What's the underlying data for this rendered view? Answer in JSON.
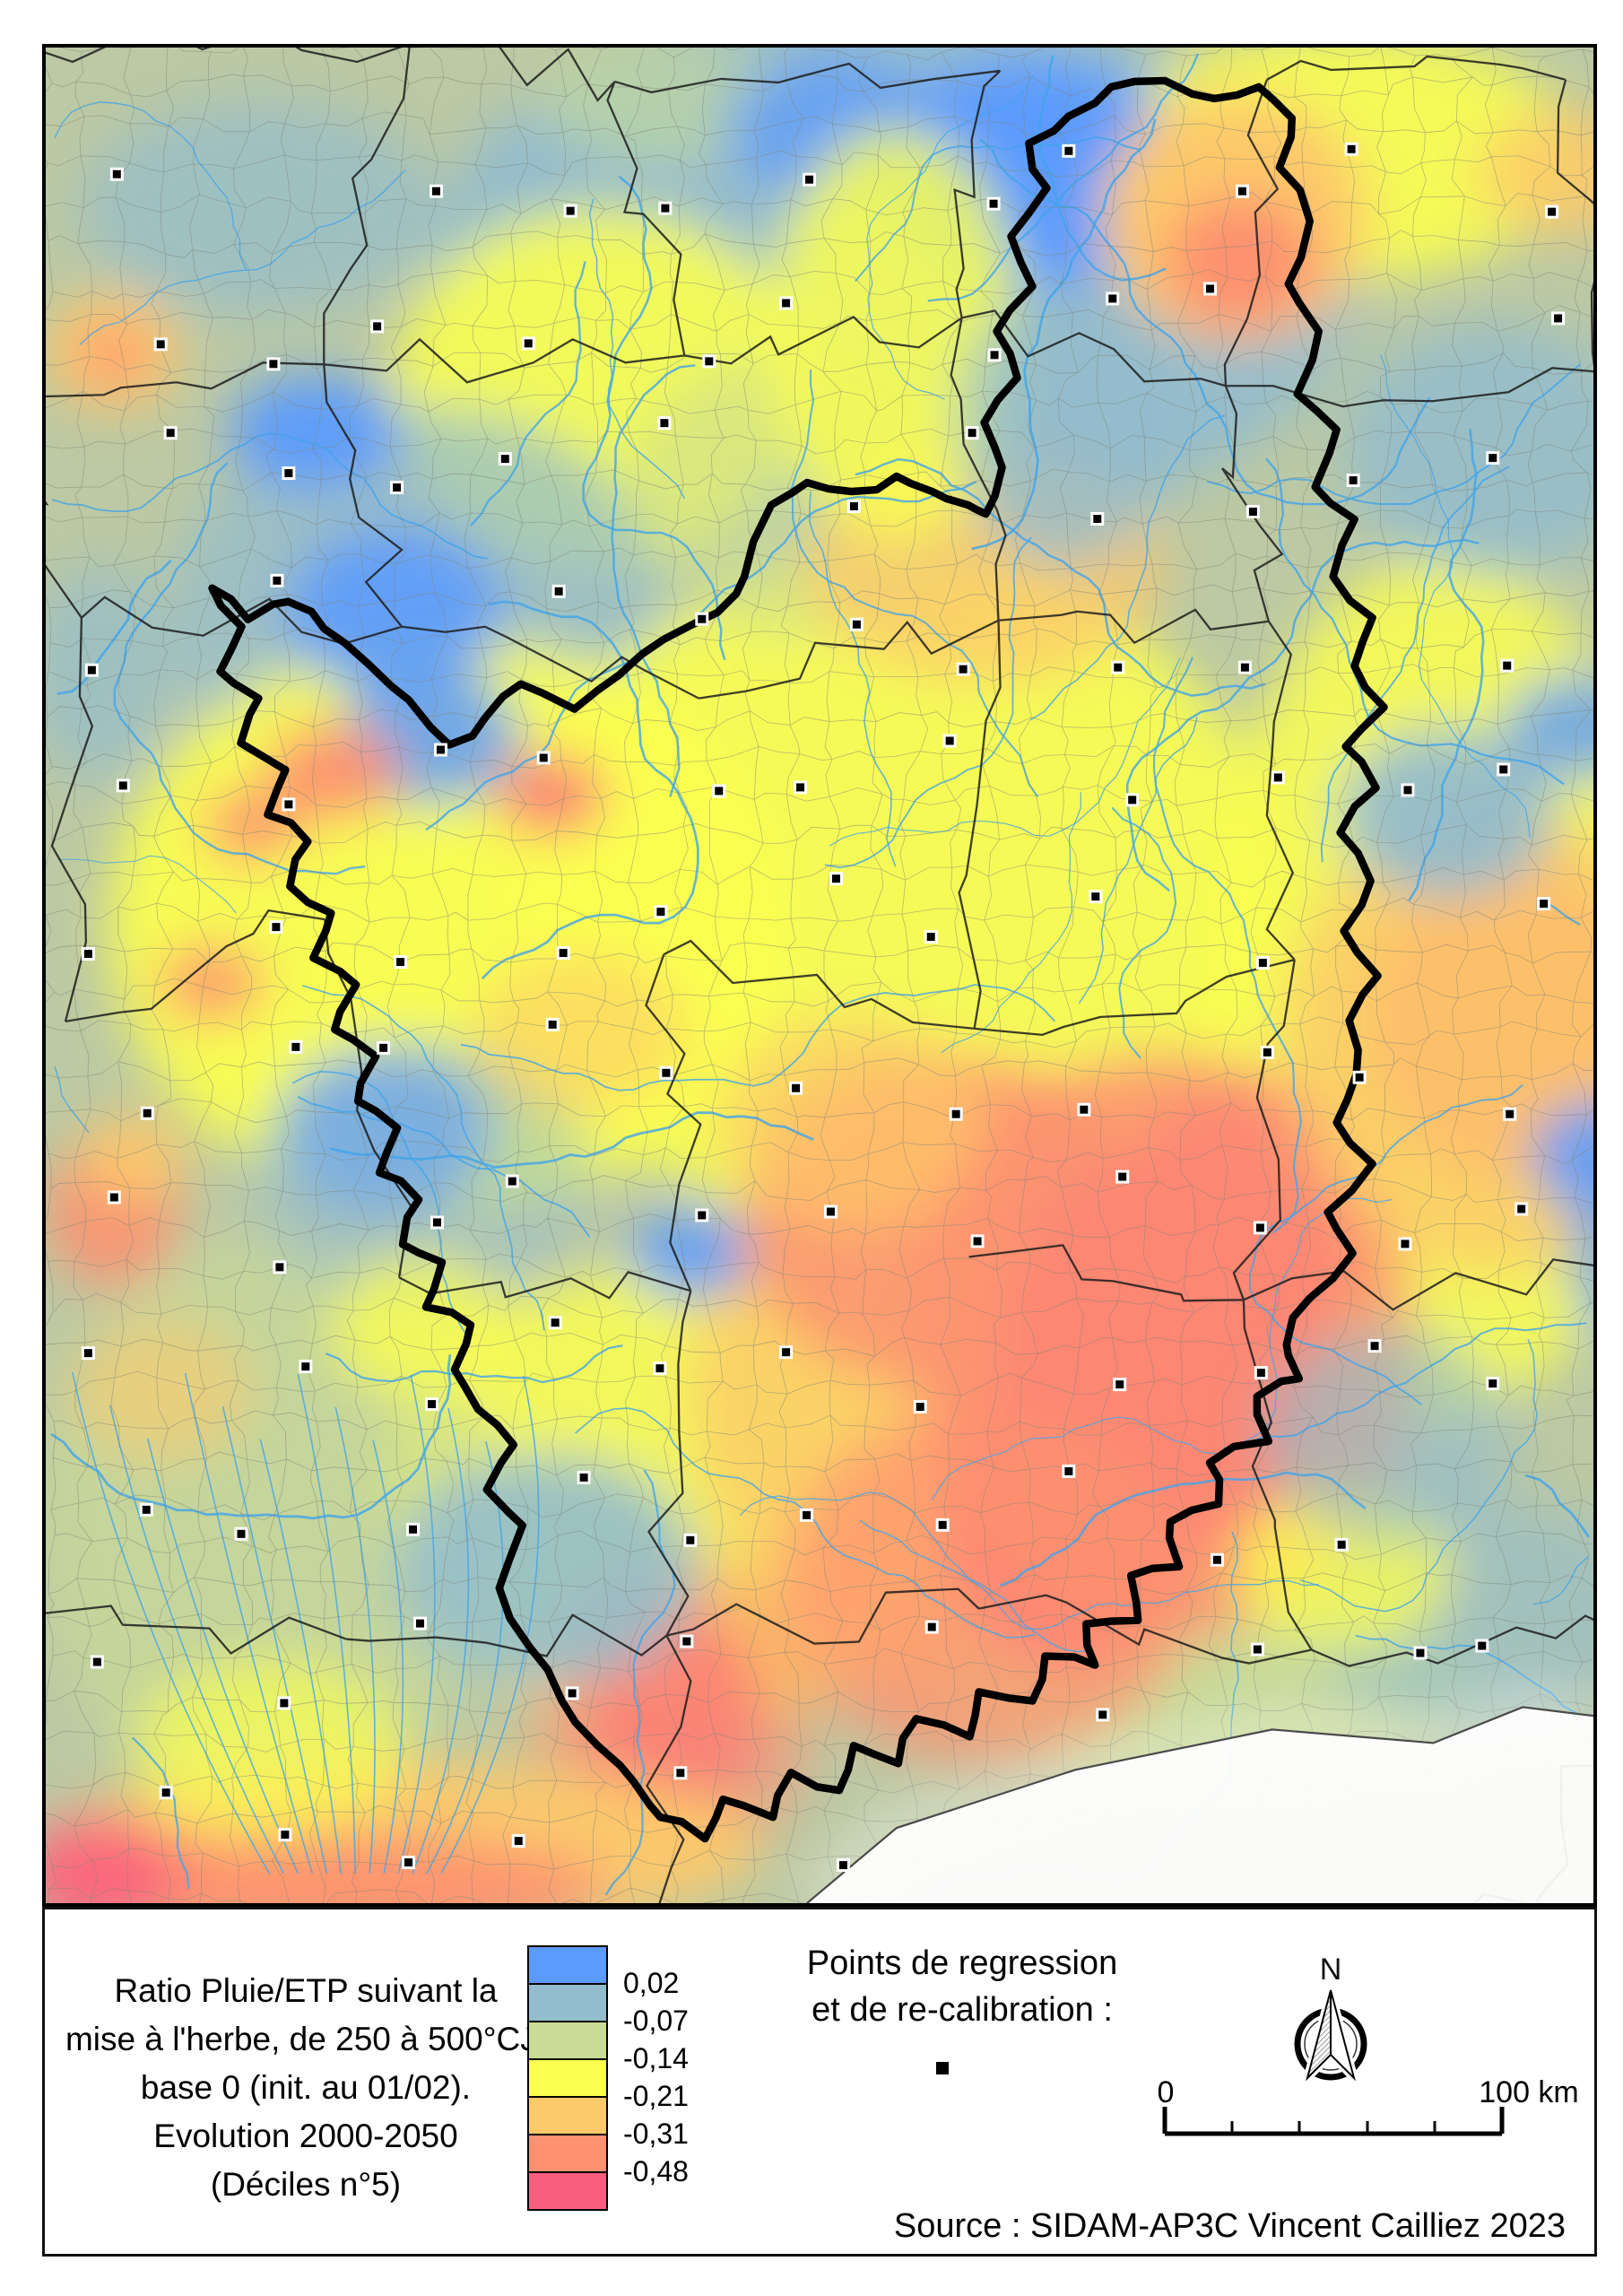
{
  "legend": {
    "title_lines": [
      "Ratio Pluie/ETP suivant la",
      "mise à l'herbe, de 250 à 500°CJ,",
      "base 0 (init. au 01/02).",
      "Evolution 2000-2050",
      "(Déciles n°5)"
    ],
    "scale": {
      "colors": [
        "#5b9bfd",
        "#93bccd",
        "#c9dc96",
        "#fbff4f",
        "#fdc96a",
        "#fd9170",
        "#fa5e7f"
      ],
      "labels": [
        "0,02",
        "-0,07",
        "-0,14",
        "-0,21",
        "-0,31",
        "-0,48"
      ]
    },
    "points_label_lines": [
      "Points de regression",
      "et de re-calibration :"
    ],
    "north_label": "N",
    "scalebar": {
      "start": "0",
      "end": "100 km"
    },
    "source": "Source : SIDAM-AP3C Vincent Cailliez 2023"
  }
}
